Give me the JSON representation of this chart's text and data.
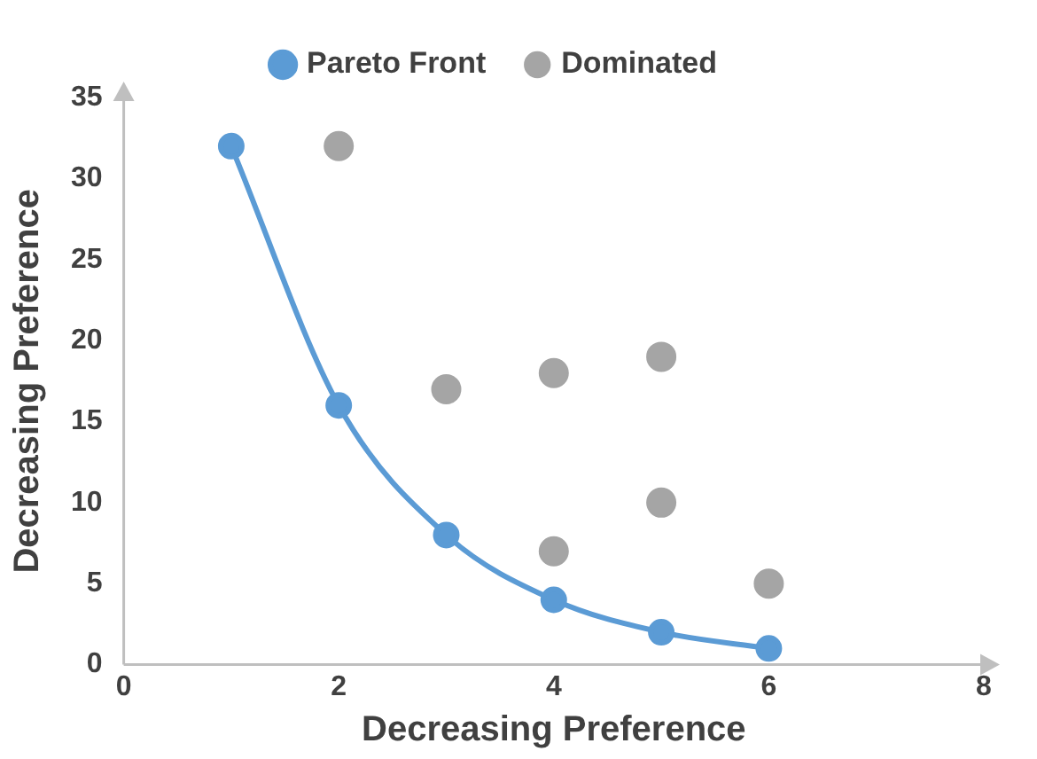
{
  "chart_data": {
    "type": "scatter",
    "xlabel": "Decreasing Preference",
    "ylabel": "Decreasing Preference",
    "xlim": [
      0,
      8
    ],
    "xticks": [
      0,
      2,
      4,
      6,
      8
    ],
    "ylim": [
      0,
      35
    ],
    "yticks": [
      0,
      5,
      10,
      15,
      20,
      25,
      30,
      35
    ],
    "grid": false,
    "legend": "top",
    "marker": "circle",
    "series": [
      {
        "name": "Pareto Front",
        "type": "line",
        "color": "#5b9bd5",
        "line_style": "solid",
        "x": [
          1,
          2,
          3,
          4,
          5,
          6
        ],
        "values": [
          32,
          16,
          8,
          4,
          2,
          1
        ]
      },
      {
        "name": "Dominated",
        "type": "scatter",
        "color": "#a5a5a5",
        "x": [
          2,
          3,
          4,
          4,
          5,
          5,
          6
        ],
        "values": [
          32,
          17,
          18,
          7,
          19,
          10,
          5
        ]
      }
    ]
  }
}
